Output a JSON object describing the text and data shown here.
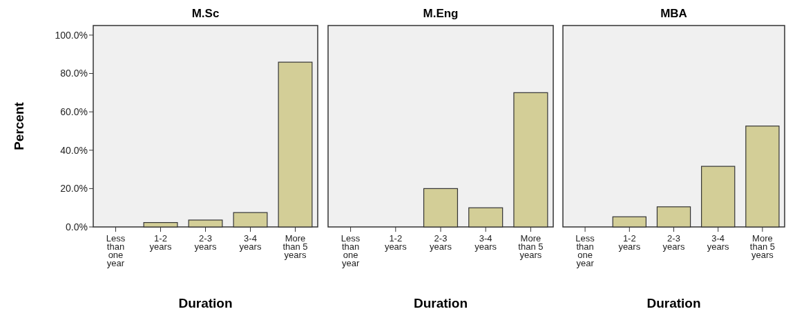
{
  "chart_data": [
    {
      "type": "bar",
      "title": "M.Sc",
      "xlabel": "Duration",
      "ylabel": "Percent",
      "categories": [
        "Less than one year",
        "1-2 years",
        "2-3 years",
        "3-4 years",
        "More than 5 years"
      ],
      "values": [
        0,
        2.3,
        3.6,
        7.5,
        85.9
      ],
      "color": "#d3ce97",
      "ylim": [
        0,
        105
      ],
      "yticks": [
        {
          "value": 0,
          "label": "0.0%"
        },
        {
          "value": 20,
          "label": "20.0%"
        },
        {
          "value": 40,
          "label": "40.0%"
        },
        {
          "value": 60,
          "label": "60.0%"
        },
        {
          "value": 80,
          "label": "80.0%"
        },
        {
          "value": 100,
          "label": "100.0%"
        }
      ],
      "grid": false
    },
    {
      "type": "bar",
      "title": "M.Eng",
      "xlabel": "Duration",
      "categories": [
        "Less than one year",
        "1-2 years",
        "2-3 years",
        "3-4 years",
        "More than 5 years"
      ],
      "values": [
        0,
        0,
        20,
        10,
        70
      ],
      "color": "#d3ce97",
      "ylim": [
        0,
        105
      ],
      "tick_labels": "x",
      "grid": false
    },
    {
      "type": "bar",
      "title": "MBA",
      "xlabel": "Duration",
      "categories": [
        "Less than one year",
        "1-2 years",
        "2-3 years",
        "3-4 years",
        "More than 5 years"
      ],
      "values": [
        0,
        5.3,
        10.5,
        31.6,
        52.6
      ],
      "color": "#d3ce97",
      "ylim": [
        0,
        105
      ],
      "tick_labels": "x",
      "grid": false
    }
  ]
}
